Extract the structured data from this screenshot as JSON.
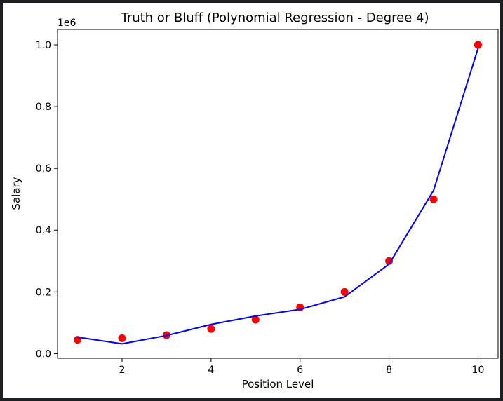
{
  "chart_data": {
    "type": "scatter",
    "title": "Truth or Bluff (Polynomial Regression - Degree 4)",
    "xlabel": "Position Level",
    "ylabel": "Salary",
    "y_offset_label": "1e6",
    "xlim": [
      0.55,
      10.45
    ],
    "ylim": [
      -0.015,
      1.05
    ],
    "x_ticks": [
      2,
      4,
      6,
      8,
      10
    ],
    "x_tick_labels": [
      "2",
      "4",
      "6",
      "8",
      "10"
    ],
    "y_ticks": [
      0.0,
      0.2,
      0.4,
      0.6,
      0.8,
      1.0
    ],
    "y_tick_labels": [
      "0.0",
      "0.2",
      "0.4",
      "0.6",
      "0.8",
      "1.0"
    ],
    "grid": false,
    "series": [
      {
        "kind": "scatter",
        "color": "#ff0000",
        "x": [
          1,
          2,
          3,
          4,
          5,
          6,
          7,
          8,
          9,
          10
        ],
        "y": [
          45000,
          50000,
          60000,
          80000,
          110000,
          150000,
          200000,
          300000,
          500000,
          1000000
        ]
      },
      {
        "kind": "line",
        "color": "#0000ff",
        "x": [
          1,
          2,
          3,
          4,
          5,
          6,
          7,
          8,
          9,
          10
        ],
        "y": [
          53357,
          31760,
          58642,
          94632,
          121725,
          143275,
          184003,
          289994,
          528694,
          988916
        ]
      }
    ]
  }
}
